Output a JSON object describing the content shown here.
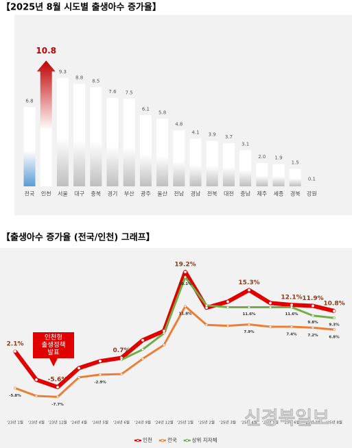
{
  "chart_data": [
    {
      "type": "bar",
      "title": "【2025년 8월 시도별 출생아수 증가율】",
      "categories": [
        "전국",
        "인천",
        "서울",
        "대구",
        "충북",
        "경기",
        "부산",
        "광주",
        "울산",
        "전남",
        "경남",
        "전북",
        "대전",
        "충남",
        "제주",
        "세종",
        "경북",
        "강원"
      ],
      "values": [
        6.8,
        10.8,
        9.3,
        8.8,
        8.5,
        7.6,
        7.5,
        6.1,
        5.8,
        4.8,
        4.1,
        3.9,
        3.7,
        3.1,
        2.0,
        1.9,
        1.5,
        0.1
      ],
      "value_labels": [
        "6.8",
        "10.8",
        "9.3",
        "8.8",
        "8.5",
        "7.6",
        "7.5",
        "6.1",
        "5.8",
        "4.8",
        "4.1",
        "3.9",
        "3.7",
        "3.1",
        "2.0",
        "1.9",
        "1.5",
        "0.1"
      ],
      "colors": [
        "#5b9bd5",
        "#c00000",
        "#bfbfbf",
        "#bfbfbf",
        "#bfbfbf",
        "#bfbfbf",
        "#bfbfbf",
        "#bfbfbf",
        "#bfbfbf",
        "#bfbfbf",
        "#bfbfbf",
        "#bfbfbf",
        "#bfbfbf",
        "#bfbfbf",
        "#bfbfbf",
        "#bfbfbf",
        "#bfbfbf",
        "#bfbfbf"
      ],
      "ylim": [
        0,
        12
      ]
    },
    {
      "type": "line",
      "title": "【출생아수 증가율 (전국/인천) 그래프】",
      "categories": [
        "'23년 1월",
        "'23년 4월",
        "'23년 12월",
        "'24년 4월",
        "'24년 5월",
        "'24년 6월",
        "'24년 9월",
        "'24년 12월",
        "'25년 1월",
        "'25년 2월",
        "'25년 3월",
        "'25년 4월",
        "'25년 5월",
        "'25년 6월",
        "'25년 7월",
        "'25년 8월"
      ],
      "series": [
        {
          "name": "인천",
          "color": "#e00000",
          "values": [
            2.1,
            -4.0,
            -5.6,
            -1.5,
            0.0,
            0.7,
            4.5,
            6.5,
            19.2,
            11.5,
            12.8,
            15.3,
            12.5,
            12.1,
            11.9,
            10.8
          ],
          "value_labels": [
            "2.1%",
            null,
            "-5.6%",
            null,
            null,
            "0.7%",
            null,
            null,
            "19.2%",
            null,
            null,
            "15.3%",
            null,
            "12.1%",
            "11.9%",
            "10.8%"
          ]
        },
        {
          "name": "전국",
          "color": "#ed7d31",
          "values": [
            -5.8,
            -7.5,
            -7.7,
            -3.5,
            -2.9,
            -2.8,
            0.5,
            3.5,
            11.8,
            7.8,
            7.6,
            7.9,
            7.4,
            7.4,
            7.2,
            6.8
          ],
          "value_labels": [
            "-5.8%",
            null,
            "-7.7%",
            null,
            "-2.9%",
            null,
            null,
            null,
            "11.8%",
            null,
            null,
            "7.9%",
            null,
            "7.4%",
            "7.2%",
            "6.8%"
          ]
        },
        {
          "name": "상위 지자체",
          "color": "#70ad47",
          "values": [
            null,
            null,
            null,
            null,
            null,
            0.3,
            2.5,
            6.0,
            18.1,
            12.0,
            11.6,
            11.6,
            11.6,
            11.6,
            9.8,
            9.3
          ],
          "value_labels": [
            null,
            null,
            null,
            null,
            null,
            null,
            null,
            null,
            "18.1%",
            null,
            null,
            "11.6%",
            null,
            "11.6%",
            "9.8%",
            "9.3%"
          ]
        }
      ],
      "annotation": [
        "인천형",
        "출생정책",
        "발표"
      ],
      "watermark": "신경북일보",
      "ylim": [
        -10,
        22
      ]
    }
  ]
}
